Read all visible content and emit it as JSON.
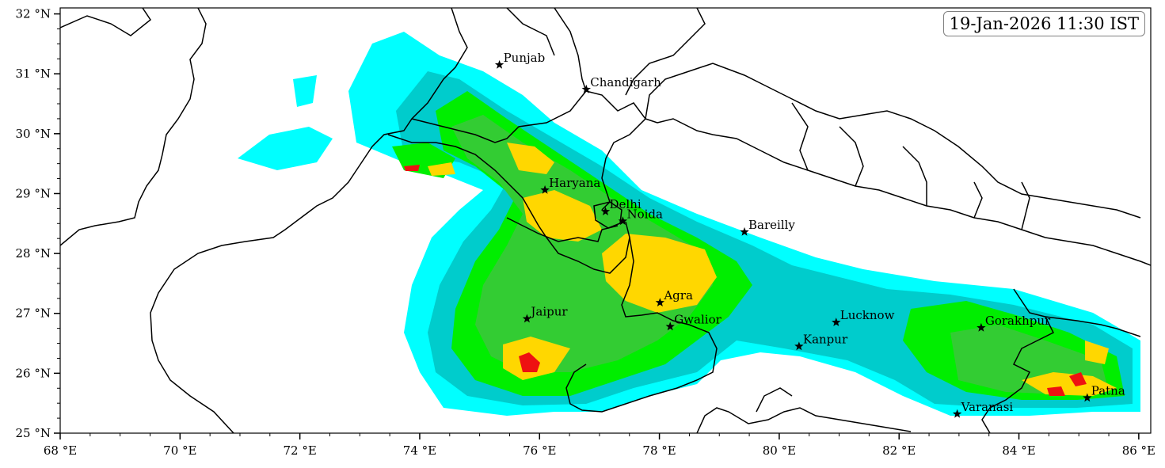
{
  "timestamp": "19-Jan-2026 11:30 IST",
  "axes": {
    "x_ticks": [
      "68 °E",
      "70 °E",
      "72 °E",
      "74 °E",
      "76 °E",
      "78 °E",
      "80 °E",
      "82 °E",
      "84 °E",
      "86 °E"
    ],
    "y_ticks": [
      "32 °N",
      "31 °N",
      "30 °N",
      "29 °N",
      "28 °N",
      "27 °N",
      "26 °N",
      "25 °N"
    ],
    "lon_range": [
      68,
      86.2
    ],
    "lat_range": [
      25,
      32.1
    ]
  },
  "cities": [
    {
      "name": "Punjab",
      "lon": 75.33,
      "lat": 31.15
    },
    {
      "name": "Chandigarh",
      "lon": 76.78,
      "lat": 30.74
    },
    {
      "name": "Haryana",
      "lon": 76.09,
      "lat": 29.06
    },
    {
      "name": "Delhi",
      "lon": 77.1,
      "lat": 28.7
    },
    {
      "name": "Noida",
      "lon": 77.39,
      "lat": 28.54
    },
    {
      "name": "Bareilly",
      "lon": 79.42,
      "lat": 28.36
    },
    {
      "name": "Agra",
      "lon": 78.01,
      "lat": 27.18
    },
    {
      "name": "Jaipur",
      "lon": 75.79,
      "lat": 26.91
    },
    {
      "name": "Gwalior",
      "lon": 78.18,
      "lat": 26.78
    },
    {
      "name": "Lucknow",
      "lon": 80.95,
      "lat": 26.85
    },
    {
      "name": "Kanpur",
      "lon": 80.33,
      "lat": 26.45
    },
    {
      "name": "Gorakhpur",
      "lon": 83.37,
      "lat": 26.76
    },
    {
      "name": "Varanasi",
      "lon": 82.97,
      "lat": 25.32
    },
    {
      "name": "Patna",
      "lon": 85.14,
      "lat": 25.59
    }
  ],
  "colors": {
    "level1": "#00ffff",
    "level2": "#00cccc",
    "level3": "#00ee00",
    "level4": "#33cc33",
    "level5": "#ffd700",
    "level6": "#ee1111",
    "boundary": "#000000"
  }
}
